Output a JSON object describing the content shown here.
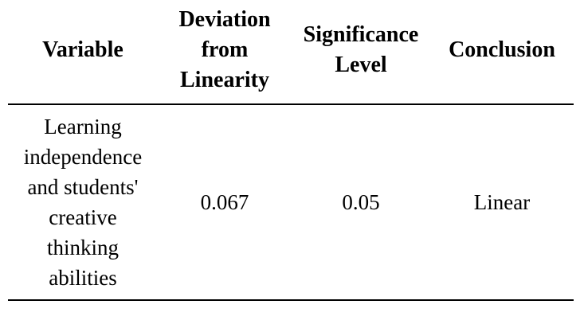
{
  "table": {
    "header": [
      "Variable",
      "Deviation from Linearity",
      "Significance Level",
      "Conclusion"
    ],
    "rows": [
      [
        "Learning independence and students' creative thinking abilities",
        "0.067",
        "0.05",
        "Linear"
      ]
    ]
  }
}
